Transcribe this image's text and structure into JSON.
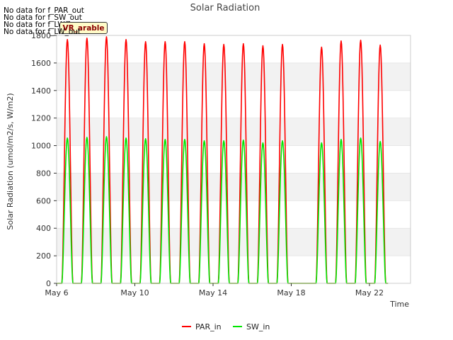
{
  "no_data_messages": [
    "No data for f_PAR_out",
    "No data for f_SW_out",
    "No data for f_LW_in",
    "No data for f_LW_out"
  ],
  "badge_label": "VR_arable",
  "colors": {
    "PAR_in": "#ff0000",
    "SW_in": "#00e600",
    "band": "#f2f2f2",
    "grid": "#dddddd"
  },
  "chart_data": {
    "type": "line",
    "title": "Solar Radiation",
    "xlabel": "Time",
    "ylabel": "Solar Radiation (umol/m2/s, W/m2)",
    "x_unit": "day of May",
    "xlim": [
      6.0,
      24.1
    ],
    "ylim": [
      0,
      1800
    ],
    "y_ticks": [
      0,
      200,
      400,
      600,
      800,
      1000,
      1200,
      1400,
      1600,
      1800
    ],
    "x_ticks": [
      {
        "day": 6,
        "label": "May 6"
      },
      {
        "day": 10,
        "label": "May 10"
      },
      {
        "day": 14,
        "label": "May 14"
      },
      {
        "day": 18,
        "label": "May 18"
      },
      {
        "day": 22,
        "label": "May 22"
      }
    ],
    "grid": "horizontal bands",
    "legend_position": "bottom",
    "series": [
      {
        "name": "PAR_in",
        "daily_peaks": [
          {
            "day": 6,
            "value": 1770
          },
          {
            "day": 7,
            "value": 1780
          },
          {
            "day": 8,
            "value": 1790
          },
          {
            "day": 9,
            "value": 1770
          },
          {
            "day": 10,
            "value": 1755
          },
          {
            "day": 11,
            "value": 1755
          },
          {
            "day": 12,
            "value": 1755
          },
          {
            "day": 13,
            "value": 1740
          },
          {
            "day": 14,
            "value": 1735
          },
          {
            "day": 15,
            "value": 1740
          },
          {
            "day": 16,
            "value": 1725
          },
          {
            "day": 17,
            "value": 1735
          },
          {
            "day": 19,
            "value": 1715
          },
          {
            "day": 20,
            "value": 1760
          },
          {
            "day": 21,
            "value": 1765
          },
          {
            "day": 22,
            "value": 1730
          }
        ]
      },
      {
        "name": "SW_in",
        "daily_peaks": [
          {
            "day": 6,
            "value": 1055
          },
          {
            "day": 7,
            "value": 1060
          },
          {
            "day": 8,
            "value": 1065
          },
          {
            "day": 9,
            "value": 1055
          },
          {
            "day": 10,
            "value": 1050
          },
          {
            "day": 11,
            "value": 1045
          },
          {
            "day": 12,
            "value": 1045
          },
          {
            "day": 13,
            "value": 1035
          },
          {
            "day": 14,
            "value": 1035
          },
          {
            "day": 15,
            "value": 1040
          },
          {
            "day": 16,
            "value": 1020
          },
          {
            "day": 17,
            "value": 1035
          },
          {
            "day": 19,
            "value": 1020
          },
          {
            "day": 20,
            "value": 1045
          },
          {
            "day": 21,
            "value": 1055
          },
          {
            "day": 22,
            "value": 1030
          }
        ]
      }
    ]
  }
}
